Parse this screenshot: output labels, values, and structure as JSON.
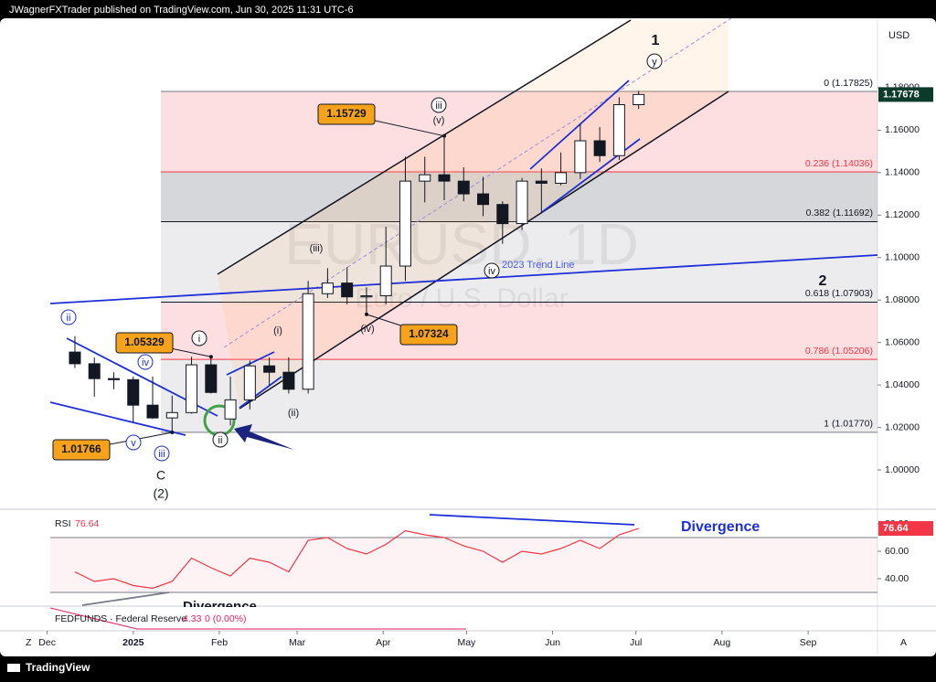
{
  "header": {
    "publisher": "JWagnerFXTrader published on TradingView.com, Jun 30, 2025 11:31 UTC-6"
  },
  "chart_data": {
    "type": "candlestick",
    "watermark": {
      "symbol": "EURUSD, 1D",
      "description": "Euro / U.S. Dollar"
    },
    "currency": "USD",
    "x": [
      "2024-12-09",
      "2024-12-16",
      "2024-12-23",
      "2024-12-30",
      "2025-01-06",
      "2025-01-13",
      "2025-01-20",
      "2025-01-27",
      "2025-02-03",
      "2025-02-10",
      "2025-02-17",
      "2025-02-24",
      "2025-03-03",
      "2025-03-10",
      "2025-03-17",
      "2025-03-24",
      "2025-03-31",
      "2025-04-07",
      "2025-04-14",
      "2025-04-21",
      "2025-04-28",
      "2025-05-05",
      "2025-05-12",
      "2025-05-19",
      "2025-05-26",
      "2025-06-02",
      "2025-06-09",
      "2025-06-16",
      "2025-06-23",
      "2025-06-30"
    ],
    "open": [
      1.0555,
      1.05,
      1.043,
      1.0425,
      1.0305,
      1.0245,
      1.027,
      1.0495,
      1.024,
      1.033,
      1.049,
      1.046,
      1.038,
      1.083,
      1.088,
      1.0815,
      1.082,
      1.096,
      1.136,
      1.139,
      1.136,
      1.13,
      1.125,
      1.116,
      1.136,
      1.135,
      1.14,
      1.155,
      1.148,
      1.172
    ],
    "high": [
      1.063,
      1.053,
      1.046,
      1.044,
      1.044,
      1.035,
      1.0533,
      1.053,
      1.044,
      1.0515,
      1.053,
      1.053,
      1.089,
      1.095,
      1.0955,
      1.086,
      1.1145,
      1.1475,
      1.1475,
      1.1573,
      1.1425,
      1.138,
      1.1265,
      1.1375,
      1.142,
      1.1495,
      1.163,
      1.1615,
      1.1755,
      1.1785
    ],
    "low": [
      1.048,
      1.0345,
      1.038,
      1.0225,
      1.024,
      1.0177,
      1.0265,
      1.036,
      1.021,
      1.0285,
      1.04,
      1.036,
      1.036,
      1.081,
      1.078,
      1.0733,
      1.078,
      1.089,
      1.126,
      1.127,
      1.1265,
      1.1195,
      1.1065,
      1.113,
      1.121,
      1.134,
      1.137,
      1.145,
      1.146,
      1.17
    ],
    "close": [
      1.05,
      1.043,
      1.0425,
      1.0305,
      1.0245,
      1.027,
      1.0495,
      1.0365,
      1.033,
      1.049,
      1.046,
      1.038,
      1.083,
      1.088,
      1.0815,
      1.082,
      1.096,
      1.136,
      1.139,
      1.136,
      1.13,
      1.125,
      1.116,
      1.136,
      1.135,
      1.14,
      1.155,
      1.148,
      1.172,
      1.1768
    ],
    "xlim": [
      "2024-11-14",
      "2025-09-26"
    ],
    "xticks": [
      {
        "value": "2024-12-01",
        "label": "Dec"
      },
      {
        "value": "2025-01-01",
        "label": "2025"
      },
      {
        "value": "2025-02-01",
        "label": "Feb"
      },
      {
        "value": "2025-03-01",
        "label": "Mar"
      },
      {
        "value": "2025-04-01",
        "label": "Apr"
      },
      {
        "value": "2025-05-01",
        "label": "May"
      },
      {
        "value": "2025-06-01",
        "label": "Jun"
      },
      {
        "value": "2025-07-01",
        "label": "Jul"
      },
      {
        "value": "2025-08-01",
        "label": "Aug"
      },
      {
        "value": "2025-09-01",
        "label": "Sep"
      }
    ],
    "ylim": [
      0.9815,
      1.2213
    ],
    "yticks": [
      {
        "value": 1.0,
        "label": "1.00000"
      },
      {
        "value": 1.02,
        "label": "1.02000"
      },
      {
        "value": 1.04,
        "label": "1.04000"
      },
      {
        "value": 1.06,
        "label": "1.06000"
      },
      {
        "value": 1.08,
        "label": "1.08000"
      },
      {
        "value": 1.1,
        "label": "1.10000"
      },
      {
        "value": 1.12,
        "label": "1.12000"
      },
      {
        "value": 1.14,
        "label": "1.14000"
      },
      {
        "value": 1.16,
        "label": "1.16000"
      },
      {
        "value": 1.18,
        "label": "1.18000"
      }
    ],
    "last_price": 1.17678,
    "fib_levels": [
      {
        "value": 1.17825,
        "label": "0 (1.17825)"
      },
      {
        "value": 1.14036,
        "label": "0.236 (1.14036)"
      },
      {
        "value": 1.11692,
        "label": "0.382 (1.11692)"
      },
      {
        "value": 1.07903,
        "label": "0.618 (1.07903)"
      },
      {
        "value": 1.05206,
        "label": "0.786 (1.05206)"
      },
      {
        "value": 1.0177,
        "label": "1 (1.01770)"
      }
    ],
    "price_callouts": [
      1.15729,
      1.05329,
      1.07324,
      1.01766
    ],
    "wave_labels": [
      "1",
      "y",
      "iii",
      "(v)",
      "(iii)",
      "(iv)",
      "(i)",
      "(ii)",
      "i",
      "ii",
      "iv",
      "v",
      "iii",
      "ii",
      "C",
      "(2)",
      "2",
      "iv"
    ],
    "trend_line_label": "2023 Trend Line",
    "annotations": [
      "Divergence",
      "Divergence"
    ],
    "rsi": {
      "name": "RSI",
      "values": [
        45,
        38,
        40,
        35,
        33,
        38,
        55,
        48,
        42,
        55,
        52,
        45,
        68,
        70,
        62,
        58,
        65,
        75,
        72,
        70,
        64,
        60,
        52,
        60,
        58,
        62,
        68,
        62,
        72,
        76.64
      ],
      "ylim": [
        20,
        88.67
      ],
      "band": [
        30,
        70
      ],
      "yticks": [
        {
          "value": 40,
          "label": "40.00"
        },
        {
          "value": 60,
          "label": "60.00"
        },
        {
          "value": 80,
          "label": "80.00"
        }
      ]
    },
    "fedfunds": {
      "name": "FEDFUNDS · Federal Reserve",
      "value": 4.33,
      "change": "0 (0.00%)"
    }
  },
  "toolbar": {
    "percent": "%",
    "zoom": "Z",
    "auto": "A"
  },
  "footer": {
    "brand": "TradingView"
  }
}
